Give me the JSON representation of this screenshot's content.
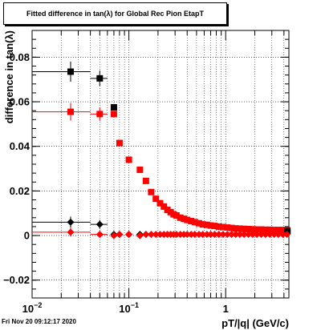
{
  "title": "Fitted difference in tan(λ) for Global Rec Pion EtapT",
  "timestamp": "Fri Nov 20 09:12:17 2020",
  "colors": {
    "black": "#000000",
    "red": "#ff0000",
    "grid": "#000000"
  },
  "chart_data": {
    "type": "scatter",
    "title": "Fitted difference in tan(λ) for Global Rec Pion EtapT",
    "xlabel": "pT/|q| (GeV/c)",
    "ylabel": "difference in tan(λ)",
    "x_scale": "log",
    "xlim": [
      0.01,
      4.5
    ],
    "ylim": [
      -0.028,
      0.092
    ],
    "grid": true,
    "x_ticks": [
      {
        "value": 0.01,
        "label": "10",
        "sup": "−2"
      },
      {
        "value": 0.1,
        "label": "10",
        "sup": "−1"
      },
      {
        "value": 1,
        "label": "1",
        "sup": ""
      }
    ],
    "y_ticks": [
      {
        "value": -0.02,
        "label": "−0.02"
      },
      {
        "value": 0,
        "label": "0"
      },
      {
        "value": 0.02,
        "label": "0.02"
      },
      {
        "value": 0.04,
        "label": "0.04"
      },
      {
        "value": 0.06,
        "label": "0.06"
      },
      {
        "value": 0.08,
        "label": "0.08"
      }
    ],
    "series": [
      {
        "marker": "square",
        "color": "#000000",
        "points": [
          {
            "x": 0.025,
            "y": 0.0735,
            "xerr": [
              0.01,
              0.04
            ],
            "yerr": 0.0045
          },
          {
            "x": 0.05,
            "y": 0.0705,
            "xerr": [
              0.04,
              0.06
            ],
            "yerr": 0.0035
          },
          {
            "x": 0.07,
            "y": 0.0575,
            "xerr": [
              0.066,
              0.074
            ],
            "yerr": 0.001
          }
        ]
      },
      {
        "marker": "square",
        "color": "#ff0000",
        "points": [
          {
            "x": 0.025,
            "y": 0.0555,
            "xerr": [
              0.01,
              0.04
            ],
            "yerr": 0.004
          },
          {
            "x": 0.05,
            "y": 0.0545,
            "xerr": [
              0.04,
              0.06
            ],
            "yerr": 0.003
          },
          {
            "x": 0.07,
            "y": 0.0545,
            "xerr": [
              0.066,
              0.074
            ],
            "yerr": 0.001
          },
          {
            "x": 0.08,
            "y": 0.0415
          },
          {
            "x": 0.1,
            "y": 0.034
          },
          {
            "x": 0.13,
            "y": 0.0295
          },
          {
            "x": 0.15,
            "y": 0.0245
          },
          {
            "x": 0.17,
            "y": 0.0195
          },
          {
            "x": 0.19,
            "y": 0.0165
          },
          {
            "x": 0.21,
            "y": 0.0145
          },
          {
            "x": 0.23,
            "y": 0.013
          },
          {
            "x": 0.25,
            "y": 0.0115
          },
          {
            "x": 0.27,
            "y": 0.0105
          },
          {
            "x": 0.29,
            "y": 0.0095
          },
          {
            "x": 0.31,
            "y": 0.009
          },
          {
            "x": 0.34,
            "y": 0.008
          },
          {
            "x": 0.37,
            "y": 0.0075
          },
          {
            "x": 0.4,
            "y": 0.007
          },
          {
            "x": 0.44,
            "y": 0.0065
          },
          {
            "x": 0.48,
            "y": 0.006
          },
          {
            "x": 0.53,
            "y": 0.0055
          },
          {
            "x": 0.58,
            "y": 0.005
          },
          {
            "x": 0.64,
            "y": 0.0048
          },
          {
            "x": 0.7,
            "y": 0.0045
          },
          {
            "x": 0.77,
            "y": 0.0043
          },
          {
            "x": 0.85,
            "y": 0.004
          },
          {
            "x": 0.94,
            "y": 0.0038
          },
          {
            "x": 1.04,
            "y": 0.0036
          },
          {
            "x": 1.15,
            "y": 0.0034
          },
          {
            "x": 1.27,
            "y": 0.0032
          },
          {
            "x": 1.4,
            "y": 0.0031
          },
          {
            "x": 1.55,
            "y": 0.003
          },
          {
            "x": 1.72,
            "y": 0.0029
          },
          {
            "x": 1.9,
            "y": 0.0028
          },
          {
            "x": 2.1,
            "y": 0.0027
          },
          {
            "x": 2.33,
            "y": 0.0027
          },
          {
            "x": 2.58,
            "y": 0.0026
          },
          {
            "x": 2.86,
            "y": 0.0026
          },
          {
            "x": 3.17,
            "y": 0.0025
          },
          {
            "x": 3.5,
            "y": 0.0025
          },
          {
            "x": 3.9,
            "y": 0.0025
          },
          {
            "x": 4.3,
            "y": 0.0025
          }
        ]
      },
      {
        "marker": "square",
        "color": "#000000",
        "points": [
          {
            "x": 4.35,
            "y": 0.002
          }
        ]
      },
      {
        "marker": "diamond",
        "color": "#000000",
        "points": [
          {
            "x": 0.025,
            "y": 0.006,
            "xerr": [
              0.01,
              0.04
            ],
            "yerr": 0.0025
          },
          {
            "x": 0.05,
            "y": 0.005,
            "xerr": [
              0.04,
              0.06
            ],
            "yerr": 0.002
          },
          {
            "x": 0.07,
            "y": 0.0005
          },
          {
            "x": 0.08,
            "y": 0.0005
          },
          {
            "x": 0.1,
            "y": 0.0005
          },
          {
            "x": 0.13,
            "y": 0.0005
          },
          {
            "x": 0.15,
            "y": 0.0005
          }
        ]
      },
      {
        "marker": "diamond",
        "color": "#ff0000",
        "points": [
          {
            "x": 0.025,
            "y": 0.0015,
            "xerr": [
              0.01,
              0.04
            ],
            "yerr": 0.002
          },
          {
            "x": 0.05,
            "y": 0.0005,
            "xerr": [
              0.04,
              0.06
            ],
            "yerr": 0.0015
          },
          {
            "x": 0.07,
            "y": 0.0
          },
          {
            "x": 0.08,
            "y": 0.0005
          },
          {
            "x": 0.1,
            "y": 0.0005
          },
          {
            "x": 0.13,
            "y": 0.0
          },
          {
            "x": 0.15,
            "y": 0.0005
          },
          {
            "x": 0.17,
            "y": 0.0005
          },
          {
            "x": 0.19,
            "y": 0.0005
          },
          {
            "x": 0.21,
            "y": 0.0005
          },
          {
            "x": 0.23,
            "y": 0.0005
          },
          {
            "x": 0.25,
            "y": 0.0005
          },
          {
            "x": 0.27,
            "y": 0.0005
          },
          {
            "x": 0.29,
            "y": 0.0005
          },
          {
            "x": 0.31,
            "y": 0.0005
          },
          {
            "x": 0.34,
            "y": 0.0005
          },
          {
            "x": 0.37,
            "y": 0.0005
          },
          {
            "x": 0.4,
            "y": 0.0005
          },
          {
            "x": 0.44,
            "y": 0.0005
          },
          {
            "x": 0.48,
            "y": 0.0005
          },
          {
            "x": 0.53,
            "y": 0.0005
          },
          {
            "x": 0.58,
            "y": 0.0005
          },
          {
            "x": 0.64,
            "y": 0.0005
          },
          {
            "x": 0.7,
            "y": 0.0005
          },
          {
            "x": 0.77,
            "y": 0.0005
          },
          {
            "x": 0.85,
            "y": 0.0005
          },
          {
            "x": 0.94,
            "y": 0.0005
          },
          {
            "x": 1.04,
            "y": 0.0005
          },
          {
            "x": 1.15,
            "y": 0.0005
          },
          {
            "x": 1.27,
            "y": 0.0005
          },
          {
            "x": 1.4,
            "y": 0.0005
          },
          {
            "x": 1.55,
            "y": 0.0005
          },
          {
            "x": 1.72,
            "y": 0.0005
          },
          {
            "x": 1.9,
            "y": 0.0005
          },
          {
            "x": 2.1,
            "y": 0.0005
          },
          {
            "x": 2.33,
            "y": 0.0005
          },
          {
            "x": 2.58,
            "y": 0.0005
          },
          {
            "x": 2.86,
            "y": 0.0005
          },
          {
            "x": 3.17,
            "y": 0.0005
          },
          {
            "x": 3.5,
            "y": 0.0005
          },
          {
            "x": 3.9,
            "y": 0.0005
          },
          {
            "x": 4.3,
            "y": 0.0005
          }
        ]
      }
    ]
  }
}
